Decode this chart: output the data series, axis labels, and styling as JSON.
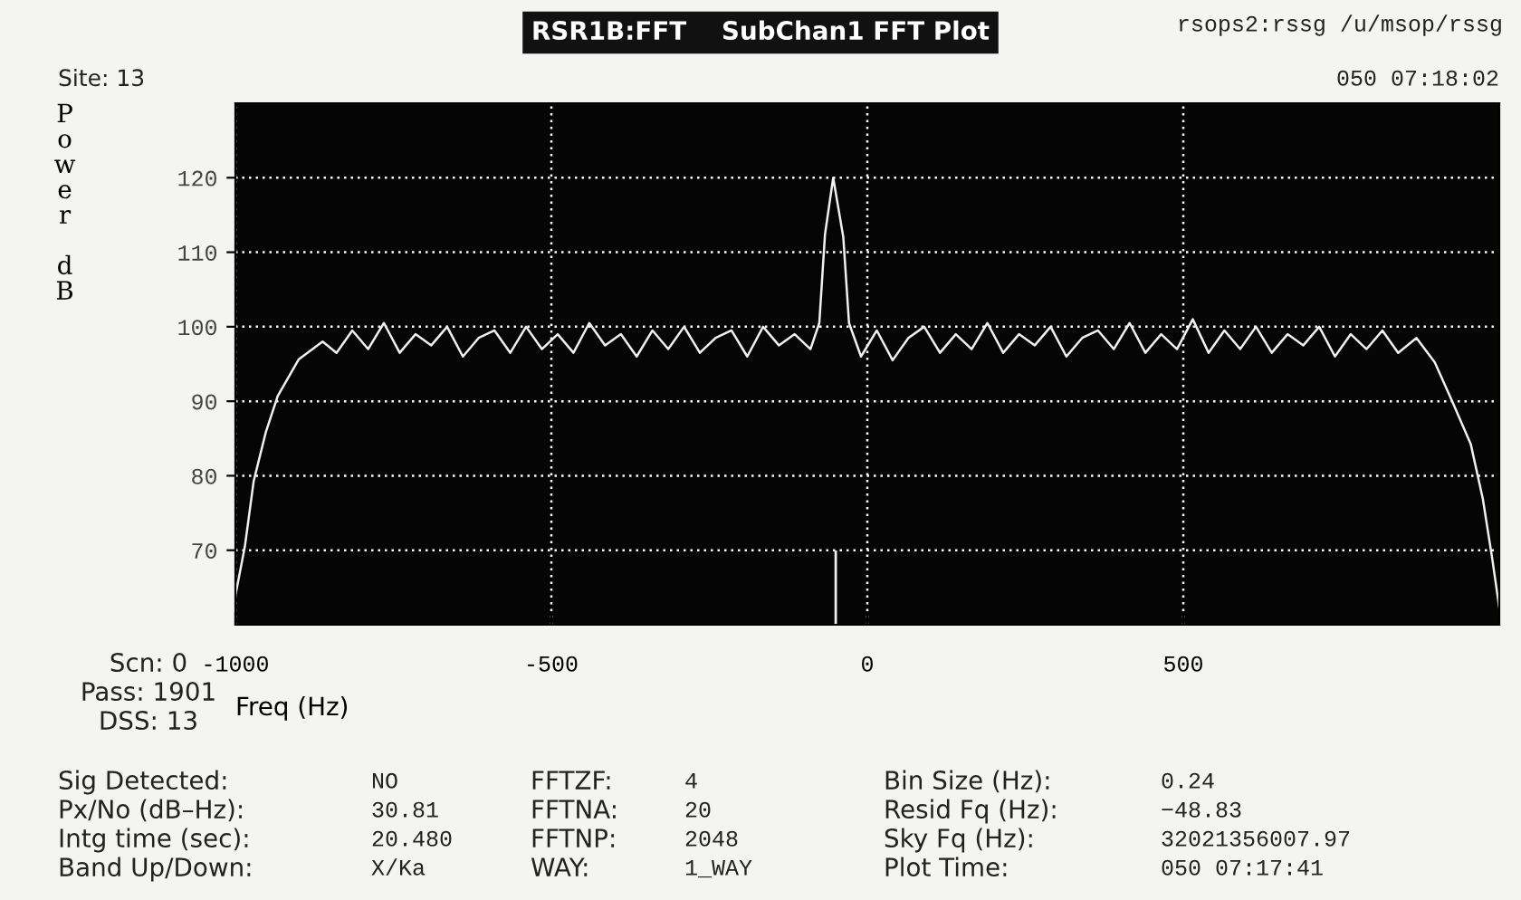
{
  "chart_data": {
    "type": "line",
    "title": "RSR1B:FFT    SubChan1 FFT Plot",
    "xlabel": "Freq (Hz)",
    "ylabel": "Power dB",
    "xlim": [
      -1000,
      1000
    ],
    "xticks": [
      -1000,
      -500,
      0,
      500
    ],
    "ylim": [
      60,
      130
    ],
    "yticks": [
      70,
      80,
      90,
      100,
      110,
      120
    ],
    "grid": true,
    "series": [
      {
        "color": "#f0f0f0",
        "x": [
          -1000,
          -985,
          -971,
          -952,
          -933,
          -900,
          -862,
          -840,
          -815,
          -790,
          -765,
          -740,
          -715,
          -690,
          -665,
          -640,
          -615,
          -590,
          -565,
          -540,
          -515,
          -490,
          -465,
          -440,
          -415,
          -390,
          -365,
          -340,
          -315,
          -290,
          -265,
          -240,
          -215,
          -190,
          -165,
          -140,
          -115,
          -90,
          -76,
          -67,
          -54,
          -38,
          -29,
          -10,
          15,
          40,
          65,
          90,
          115,
          140,
          165,
          190,
          215,
          240,
          265,
          290,
          315,
          340,
          365,
          390,
          415,
          440,
          465,
          490,
          515,
          540,
          565,
          590,
          615,
          640,
          665,
          690,
          715,
          740,
          765,
          790,
          815,
          840,
          869,
          898,
          926,
          955,
          974,
          989,
          1000
        ],
        "values": [
          63.9,
          70.5,
          79.3,
          85.8,
          90.7,
          95.6,
          98,
          96.5,
          99.5,
          97,
          100.5,
          96.5,
          99,
          97.5,
          100,
          96,
          98.5,
          99.5,
          96.5,
          100,
          97,
          99,
          96.5,
          100.5,
          97.5,
          99,
          96,
          99.5,
          97,
          100,
          96.5,
          98.5,
          99.5,
          96,
          100,
          97.5,
          99,
          97,
          100.5,
          112.4,
          120,
          112,
          100.5,
          96,
          99.5,
          95.5,
          98.5,
          100,
          96.5,
          99,
          97,
          100.5,
          96.5,
          99,
          97.5,
          100,
          96,
          98.5,
          99.5,
          97,
          100.5,
          96.5,
          99,
          97,
          101,
          96.5,
          99.5,
          97,
          100,
          96.5,
          99,
          97.5,
          100,
          96,
          99,
          97,
          99.5,
          96.5,
          98.5,
          95.2,
          89.9,
          84.2,
          76.9,
          68.8,
          62.3
        ]
      }
    ],
    "ref_lines": [
      {
        "axis": "x",
        "value": -50,
        "color": "#f0f0f0"
      }
    ],
    "annotations": [
      "rsops2:rssg /u/msop/rssg",
      "Site: 13",
      "050 07:18:02",
      "Scn: 0",
      "Pass: 1901",
      "DSS: 13",
      "Sig Detected:",
      "NO",
      "FFTZF:",
      "4",
      "Bin Size (Hz):",
      "0.24",
      "Px/No (dB–Hz):",
      "30.81",
      "FFTNA:",
      "20",
      "Resid Fq (Hz):",
      "−48.83",
      "Intg time (sec):",
      "20.480",
      "FFTNP:",
      "2048",
      "Sky Fq (Hz):",
      "32021356007.97",
      "Band Up/Down:",
      "X/Ka",
      "WAY:",
      "1_WAY",
      "Plot Time:",
      "050 07:17:41"
    ]
  }
}
